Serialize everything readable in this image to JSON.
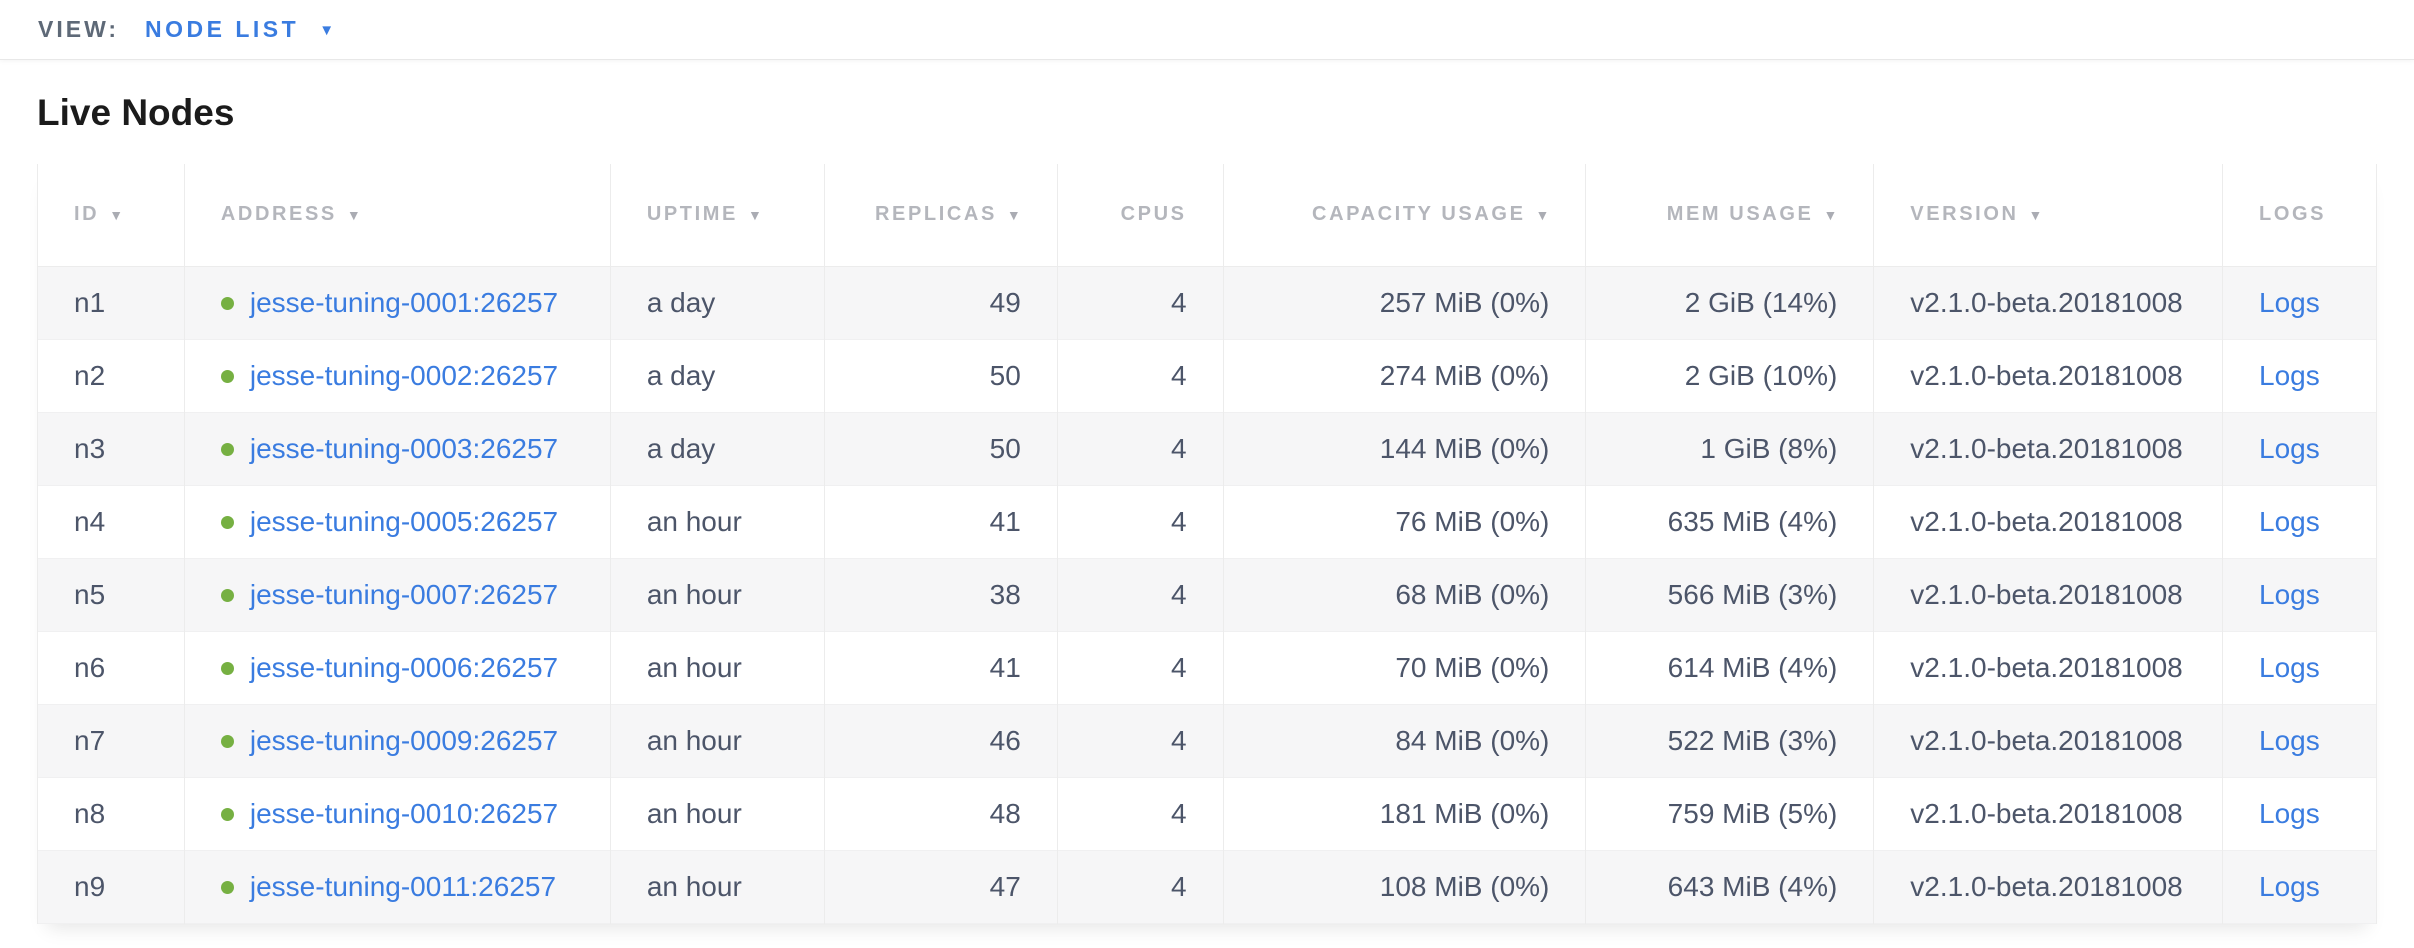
{
  "view_bar": {
    "label": "VIEW:",
    "selected": "NODE LIST",
    "caret_glyph": "▼"
  },
  "page": {
    "title": "Live Nodes"
  },
  "table": {
    "sort_arrow_glyph": "▼",
    "columns": [
      {
        "key": "id",
        "label": "ID",
        "sortable": true,
        "align": "left"
      },
      {
        "key": "address",
        "label": "ADDRESS",
        "sortable": true,
        "align": "left"
      },
      {
        "key": "uptime",
        "label": "UPTIME",
        "sortable": true,
        "align": "left"
      },
      {
        "key": "replicas",
        "label": "REPLICAS",
        "sortable": true,
        "align": "right"
      },
      {
        "key": "cpus",
        "label": "CPUS",
        "sortable": false,
        "align": "right"
      },
      {
        "key": "capacity",
        "label": "CAPACITY USAGE",
        "sortable": true,
        "align": "right"
      },
      {
        "key": "mem",
        "label": "MEM USAGE",
        "sortable": true,
        "align": "right"
      },
      {
        "key": "version",
        "label": "VERSION",
        "sortable": true,
        "align": "left"
      },
      {
        "key": "logs",
        "label": "LOGS",
        "sortable": false,
        "align": "left"
      }
    ],
    "rows": [
      {
        "id": "n1",
        "status": "live",
        "address": "jesse-tuning-0001:26257",
        "uptime": "a day",
        "replicas": "49",
        "cpus": "4",
        "capacity": "257 MiB (0%)",
        "mem": "2 GiB (14%)",
        "version": "v2.1.0-beta.20181008",
        "logs": "Logs"
      },
      {
        "id": "n2",
        "status": "live",
        "address": "jesse-tuning-0002:26257",
        "uptime": "a day",
        "replicas": "50",
        "cpus": "4",
        "capacity": "274 MiB (0%)",
        "mem": "2 GiB (10%)",
        "version": "v2.1.0-beta.20181008",
        "logs": "Logs"
      },
      {
        "id": "n3",
        "status": "live",
        "address": "jesse-tuning-0003:26257",
        "uptime": "a day",
        "replicas": "50",
        "cpus": "4",
        "capacity": "144 MiB (0%)",
        "mem": "1 GiB (8%)",
        "version": "v2.1.0-beta.20181008",
        "logs": "Logs"
      },
      {
        "id": "n4",
        "status": "live",
        "address": "jesse-tuning-0005:26257",
        "uptime": "an hour",
        "replicas": "41",
        "cpus": "4",
        "capacity": "76 MiB (0%)",
        "mem": "635 MiB (4%)",
        "version": "v2.1.0-beta.20181008",
        "logs": "Logs"
      },
      {
        "id": "n5",
        "status": "live",
        "address": "jesse-tuning-0007:26257",
        "uptime": "an hour",
        "replicas": "38",
        "cpus": "4",
        "capacity": "68 MiB (0%)",
        "mem": "566 MiB (3%)",
        "version": "v2.1.0-beta.20181008",
        "logs": "Logs"
      },
      {
        "id": "n6",
        "status": "live",
        "address": "jesse-tuning-0006:26257",
        "uptime": "an hour",
        "replicas": "41",
        "cpus": "4",
        "capacity": "70 MiB (0%)",
        "mem": "614 MiB (4%)",
        "version": "v2.1.0-beta.20181008",
        "logs": "Logs"
      },
      {
        "id": "n7",
        "status": "live",
        "address": "jesse-tuning-0009:26257",
        "uptime": "an hour",
        "replicas": "46",
        "cpus": "4",
        "capacity": "84 MiB (0%)",
        "mem": "522 MiB (3%)",
        "version": "v2.1.0-beta.20181008",
        "logs": "Logs"
      },
      {
        "id": "n8",
        "status": "live",
        "address": "jesse-tuning-0010:26257",
        "uptime": "an hour",
        "replicas": "48",
        "cpus": "4",
        "capacity": "181 MiB (0%)",
        "mem": "759 MiB (5%)",
        "version": "v2.1.0-beta.20181008",
        "logs": "Logs"
      },
      {
        "id": "n9",
        "status": "live",
        "address": "jesse-tuning-0011:26257",
        "uptime": "an hour",
        "replicas": "47",
        "cpus": "4",
        "capacity": "108 MiB (0%)",
        "mem": "643 MiB (4%)",
        "version": "v2.1.0-beta.20181008",
        "logs": "Logs"
      }
    ]
  },
  "colors": {
    "accent_blue": "#3a7ce0",
    "live_green": "#76b042",
    "header_gray": "#b4b6bc",
    "cell_text": "#4c5569",
    "row_stripe": "#f6f6f7",
    "border": "#ececec"
  }
}
